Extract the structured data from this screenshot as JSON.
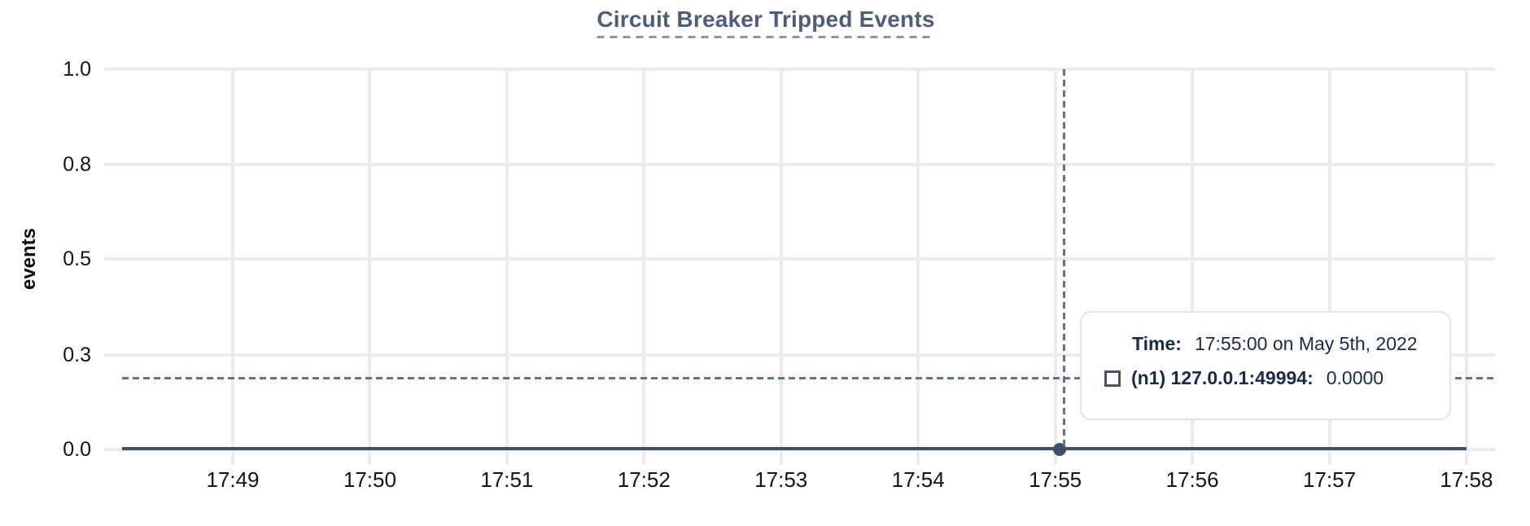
{
  "chart": {
    "title": "Circuit Breaker Tripped Events",
    "y_axis_title": "events",
    "tooltip": {
      "time_label": "Time:",
      "time_value": "17:55:00 on May 5th, 2022",
      "series_label": "(n1) 127.0.0.1:49994:",
      "series_value": "0.0000"
    },
    "colors": {
      "title": "#4c5e7d",
      "title_underline": "#8995b0",
      "axis_text": "#141414",
      "grid": "#ececec",
      "series_line": "#3e4f68",
      "crosshair": "#5f7490",
      "tooltip_text": "#172b4e",
      "tooltip_border": "#e4e4e6",
      "legend_marker": "#44546d"
    }
  },
  "chart_data": {
    "type": "line",
    "title": "Circuit Breaker Tripped Events",
    "xlabel": "",
    "ylabel": "events",
    "x_tick_labels": [
      "17:49",
      "17:50",
      "17:51",
      "17:52",
      "17:53",
      "17:54",
      "17:55",
      "17:56",
      "17:57",
      "17:58"
    ],
    "y_tick_labels": [
      "1.0",
      "0.8",
      "0.5",
      "0.3",
      "0.0"
    ],
    "y_tick_values": [
      1.0,
      0.75,
      0.5,
      0.25,
      0.0
    ],
    "ylim": [
      0,
      1
    ],
    "grid": true,
    "legend_position": "tooltip-only",
    "series": [
      {
        "name": "(n1) 127.0.0.1:49994",
        "color": "#3e4f68",
        "constant_value": 0.0,
        "values": [
          0,
          0,
          0,
          0,
          0,
          0,
          0,
          0,
          0,
          0
        ]
      }
    ],
    "highlighted_point": {
      "x": "17:55:00",
      "y": 0.0
    },
    "crosshair": {
      "x": "17:55:00",
      "y_fraction": 0.19
    }
  }
}
